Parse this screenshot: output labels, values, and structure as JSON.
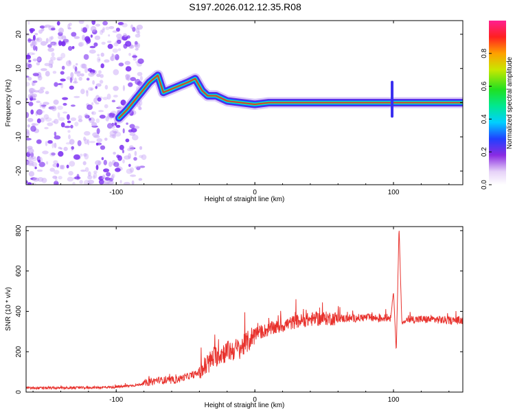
{
  "title": "S197.2026.012.12.35.R08",
  "colors": {
    "snr_line": "#e8322d",
    "track_core": "#e33030",
    "noise": "#7a2cf0"
  },
  "chart_data": [
    {
      "type": "heatmap",
      "title": "S197.2026.012.12.35.R08",
      "xlabel": "Height of straight line (km)",
      "ylabel": "Frequency (Hz)",
      "xlim": [
        -165,
        150
      ],
      "ylim": [
        -24,
        24
      ],
      "xticks": [
        "-100",
        "0",
        "100"
      ],
      "yticks": [
        "-20",
        "-10",
        "0",
        "10",
        "20"
      ],
      "colorbar": {
        "label": "Normalized spectral amplitude",
        "range": [
          0,
          1
        ],
        "ticks": [
          "0.0",
          "0.2",
          "0.4",
          "0.6",
          "0.8"
        ]
      },
      "track": [
        {
          "x": -98,
          "y": -4.5
        },
        {
          "x": -92,
          "y": -2
        },
        {
          "x": -86,
          "y": 1
        },
        {
          "x": -82,
          "y": 3
        },
        {
          "x": -76,
          "y": 6
        },
        {
          "x": -70,
          "y": 8
        },
        {
          "x": -66,
          "y": 3
        },
        {
          "x": -60,
          "y": 4
        },
        {
          "x": -54,
          "y": 5
        },
        {
          "x": -48,
          "y": 6
        },
        {
          "x": -43,
          "y": 7
        },
        {
          "x": -38,
          "y": 3.5
        },
        {
          "x": -34,
          "y": 2
        },
        {
          "x": -28,
          "y": 2
        },
        {
          "x": -20,
          "y": 0.5
        },
        {
          "x": -10,
          "y": 0
        },
        {
          "x": 0,
          "y": -0.5
        },
        {
          "x": 10,
          "y": 0
        },
        {
          "x": 30,
          "y": 0
        },
        {
          "x": 50,
          "y": 0
        },
        {
          "x": 70,
          "y": 0
        },
        {
          "x": 90,
          "y": 0
        },
        {
          "x": 110,
          "y": 0
        },
        {
          "x": 130,
          "y": 0
        },
        {
          "x": 150,
          "y": 0
        }
      ],
      "spike": {
        "x": 99,
        "y_range": [
          -4,
          6
        ]
      }
    },
    {
      "type": "line",
      "xlabel": "Height of straight line (km)",
      "ylabel": "SNR (10 * v/v)",
      "xlim": [
        -165,
        150
      ],
      "ylim": [
        0,
        820
      ],
      "xticks": [
        "-100",
        "0",
        "100"
      ],
      "yticks": [
        "0",
        "200",
        "400",
        "600",
        "800"
      ],
      "series": [
        {
          "name": "SNR",
          "x": [
            -165,
            -140,
            -120,
            -100,
            -85,
            -75,
            -70,
            -60,
            -50,
            -42,
            -35,
            -30,
            -25,
            -20,
            -15,
            -10,
            -5,
            0,
            10,
            20,
            30,
            40,
            50,
            60,
            70,
            80,
            90,
            98,
            100,
            102,
            104,
            106,
            110,
            120,
            130,
            140,
            150
          ],
          "values": [
            20,
            20,
            22,
            25,
            35,
            50,
            60,
            55,
            75,
            90,
            130,
            170,
            190,
            200,
            210,
            220,
            250,
            290,
            310,
            330,
            350,
            360,
            365,
            365,
            365,
            370,
            365,
            370,
            500,
            200,
            820,
            340,
            360,
            360,
            360,
            355,
            355
          ]
        }
      ]
    }
  ]
}
